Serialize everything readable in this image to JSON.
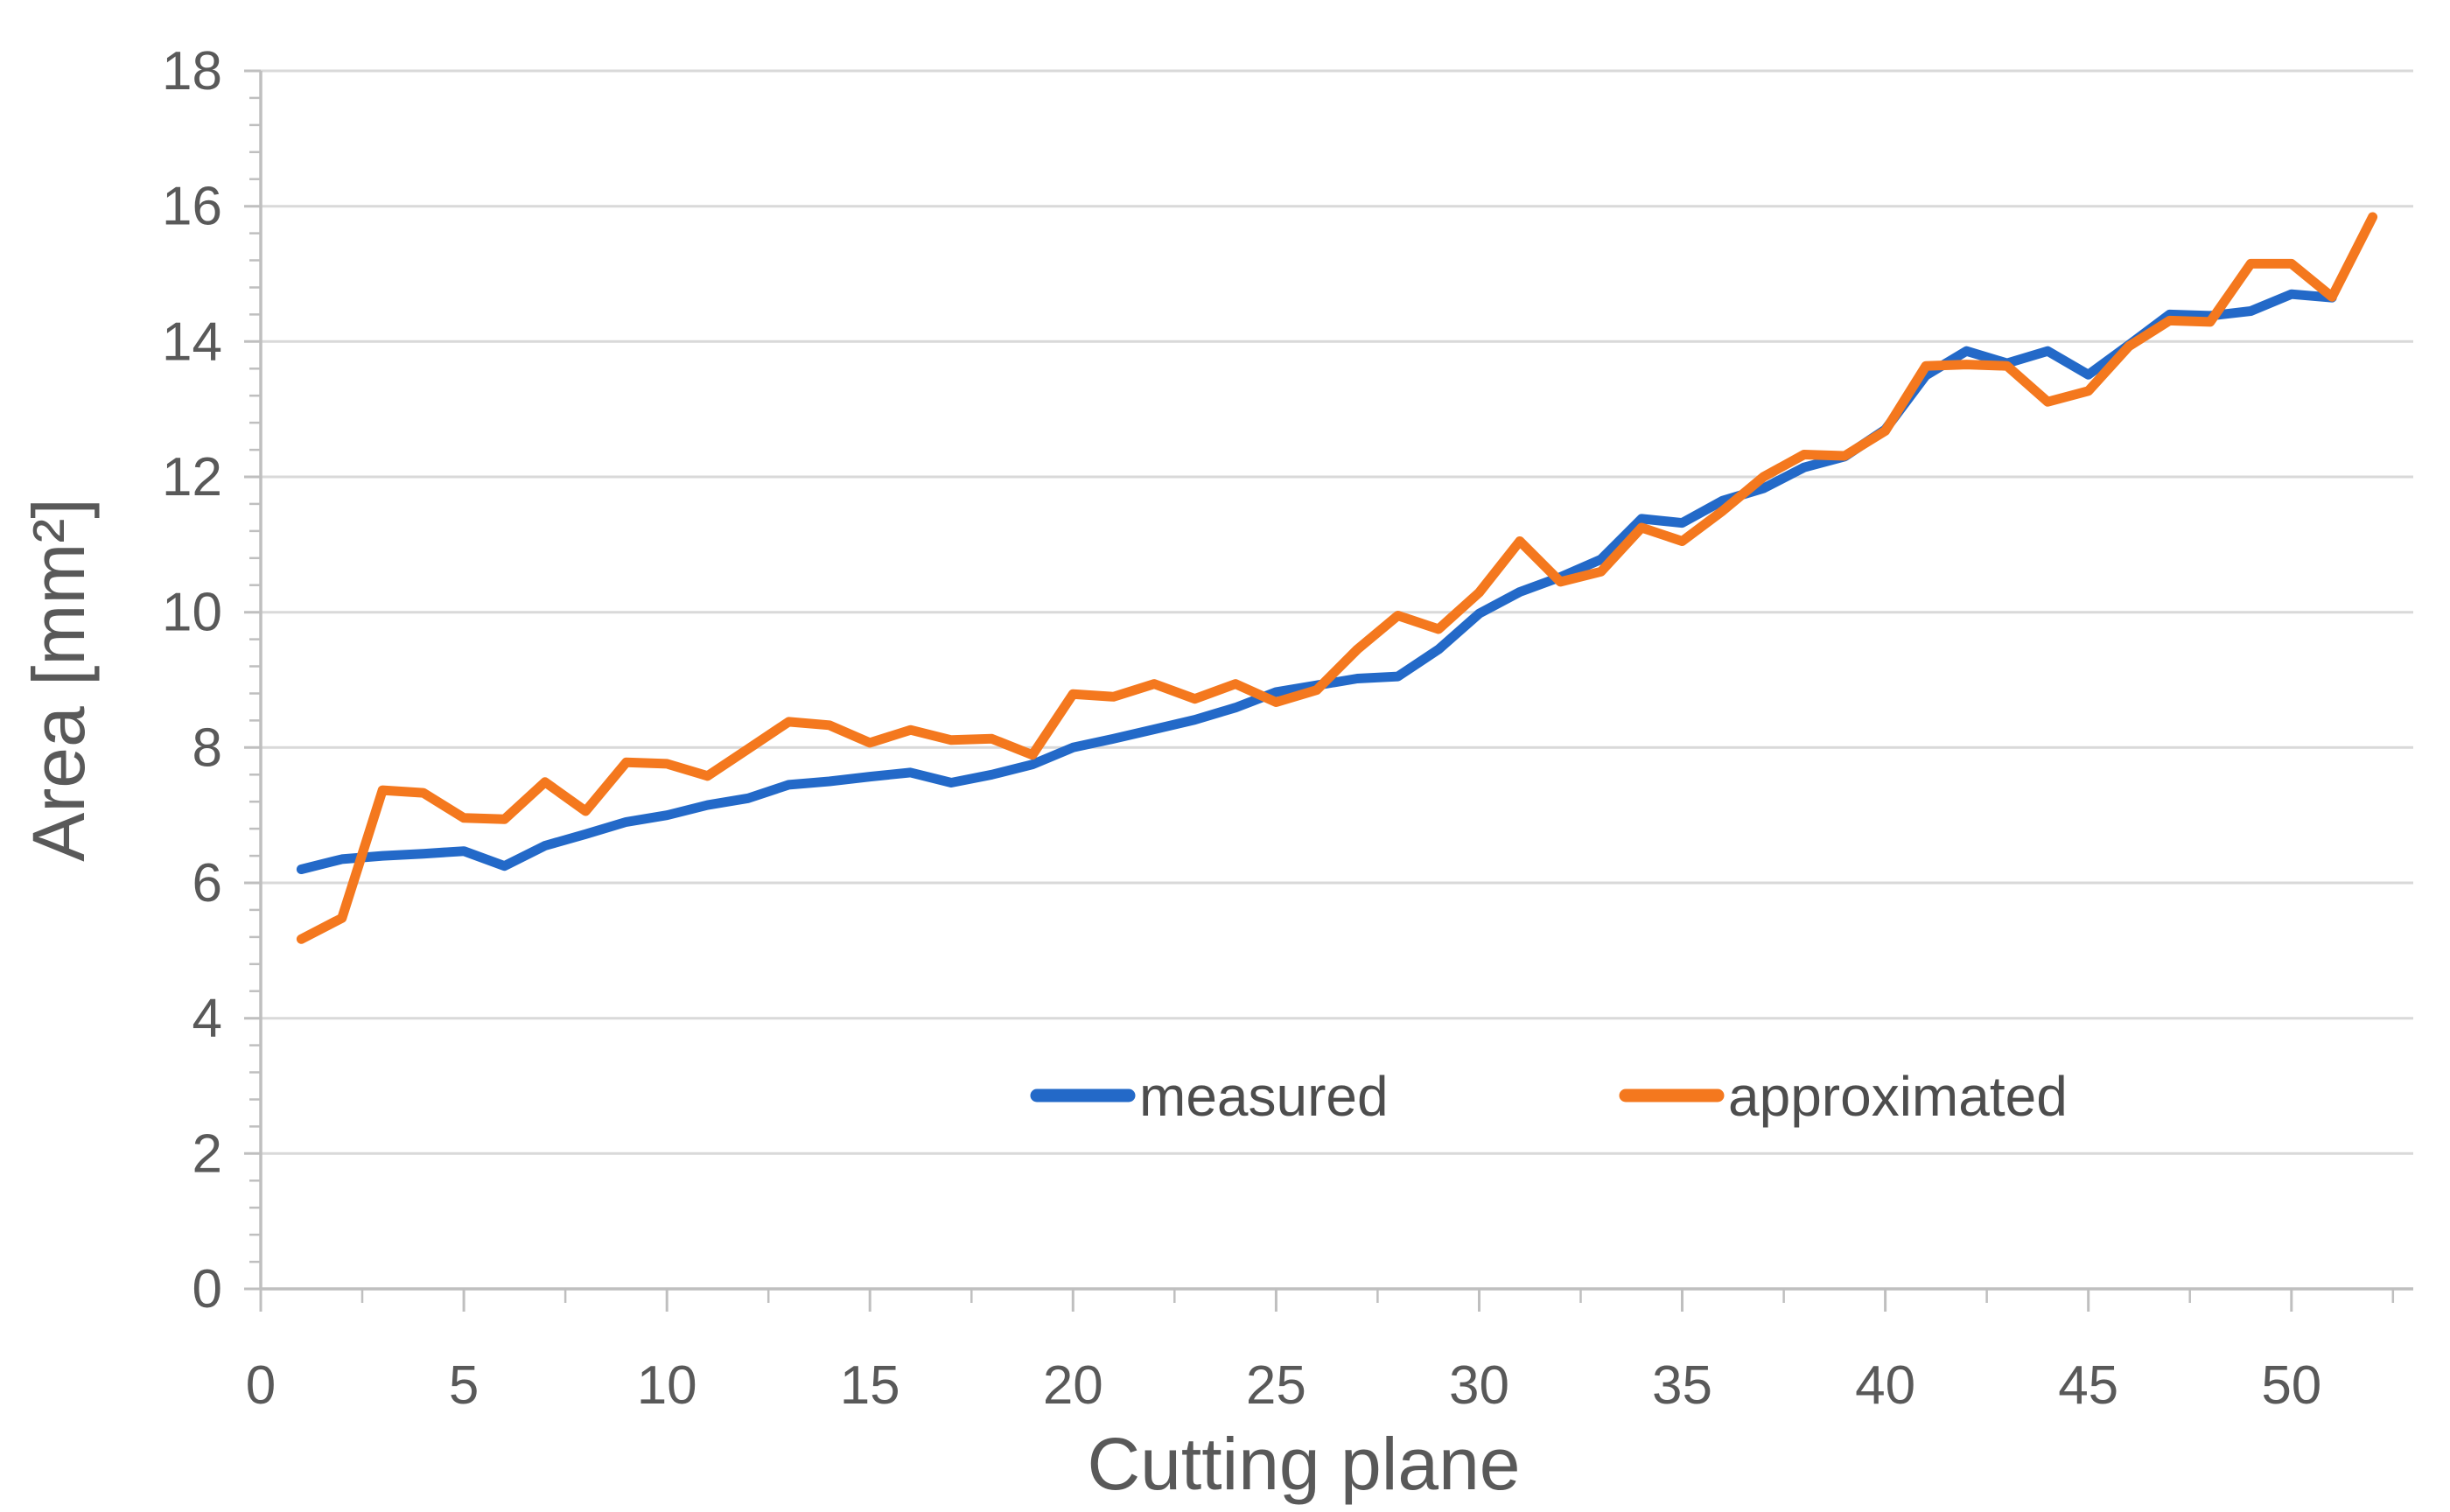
{
  "style": {
    "background": "#FFFFFF",
    "grid_color": "#D9D9D9",
    "axis_color": "#BFBFBF",
    "text_color": "#595959",
    "measured_color": "#2369C8",
    "approximated_color": "#F4781E"
  },
  "chart_data": {
    "type": "line",
    "title": "",
    "xlabel": "Cutting plane",
    "ylabel": "Area [mm²]",
    "xlim": [
      0,
      53
    ],
    "ylim": [
      0,
      18
    ],
    "x_ticks": [
      0,
      5,
      10,
      15,
      20,
      25,
      30,
      35,
      40,
      45,
      50
    ],
    "x_minor_tick_step": 2.5,
    "y_ticks": [
      0,
      2,
      4,
      6,
      8,
      10,
      12,
      14,
      16,
      18
    ],
    "y_minor_tick_step": 0.4,
    "grid": "horizontal",
    "legend_position": "inside-bottom-center",
    "series": [
      {
        "name": "measured",
        "color": "#2369C8",
        "x_start": 1,
        "values": [
          6.2,
          6.35,
          6.4,
          6.43,
          6.47,
          6.25,
          6.55,
          6.72,
          6.9,
          7.0,
          7.15,
          7.25,
          7.45,
          7.5,
          7.57,
          7.63,
          7.48,
          7.6,
          7.75,
          8.0,
          8.13,
          8.27,
          8.41,
          8.59,
          8.82,
          8.92,
          9.02,
          9.05,
          9.45,
          9.98,
          10.3,
          10.52,
          10.78,
          11.38,
          11.32,
          11.65,
          11.83,
          12.14,
          12.3,
          12.7,
          13.5,
          13.86,
          13.68,
          13.86,
          13.51,
          13.95,
          14.4,
          14.38,
          14.45,
          14.7,
          14.65
        ]
      },
      {
        "name": "approximated",
        "color": "#F4781E",
        "x_start": 1,
        "values": [
          5.17,
          5.48,
          7.37,
          7.33,
          6.96,
          6.94,
          7.49,
          7.06,
          7.78,
          7.76,
          7.58,
          7.98,
          8.38,
          8.33,
          8.07,
          8.26,
          8.11,
          8.13,
          7.89,
          8.79,
          8.75,
          8.94,
          8.72,
          8.94,
          8.67,
          8.85,
          9.45,
          9.95,
          9.75,
          10.29,
          11.05,
          10.45,
          10.6,
          11.25,
          11.05,
          11.5,
          12.0,
          12.33,
          12.31,
          12.68,
          13.64,
          13.66,
          13.64,
          13.11,
          13.27,
          13.93,
          14.31,
          14.29,
          15.15,
          15.15,
          14.66,
          15.84
        ]
      }
    ]
  }
}
